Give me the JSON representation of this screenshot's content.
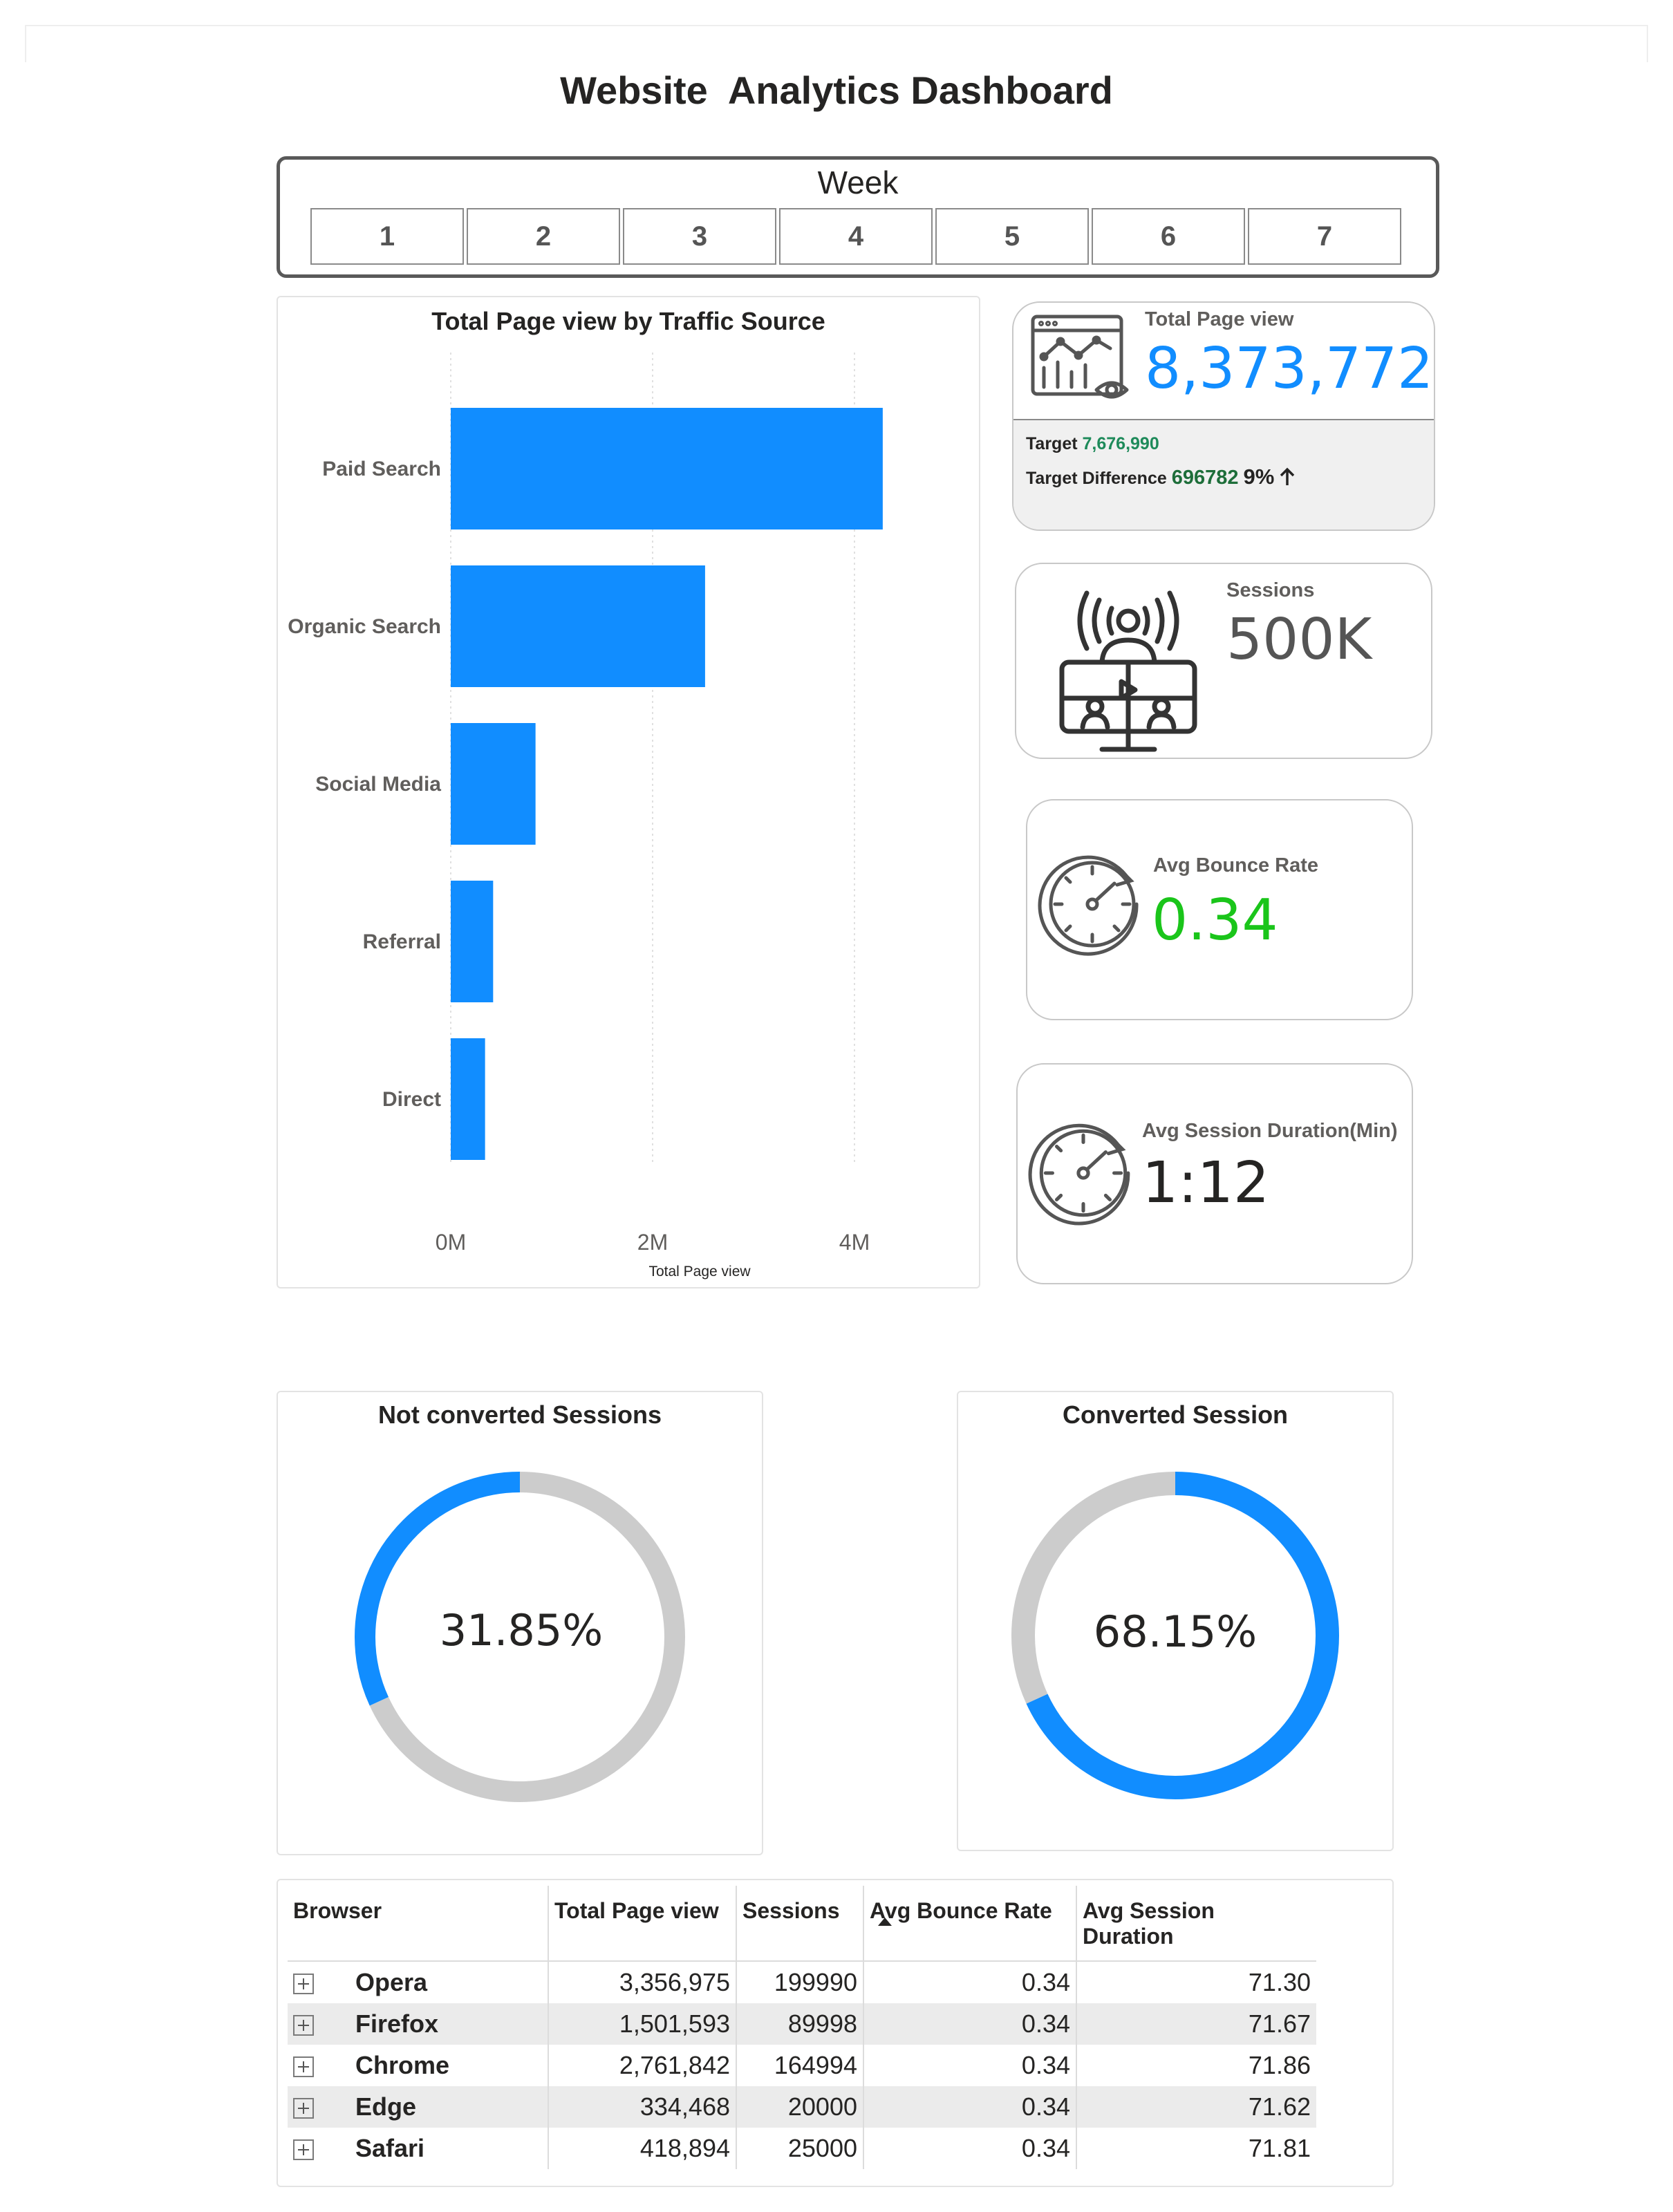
{
  "title": "Website  Analytics Dashboard",
  "week_slicer": {
    "title": "Week",
    "options": [
      "1",
      "2",
      "3",
      "4",
      "5",
      "6",
      "7"
    ]
  },
  "bar_chart": {
    "title": "Total Page view by Traffic Source",
    "xlabel": "Total Page view"
  },
  "chart_data": [
    {
      "type": "bar",
      "orientation": "horizontal",
      "title": "Total Page view by Traffic Source",
      "xlabel": "Total Page view",
      "ylabel": "",
      "categories": [
        "Paid Search",
        "Organic Search",
        "Social Media",
        "Referral",
        "Direct"
      ],
      "values": [
        4280000,
        2520000,
        840000,
        420000,
        340000
      ],
      "xlim": [
        0,
        5000000
      ],
      "xticks": [
        {
          "value": 0,
          "label": "0M"
        },
        {
          "value": 2000000,
          "label": "2M"
        },
        {
          "value": 4000000,
          "label": "4M"
        }
      ],
      "grid": true,
      "color": "#118dff"
    },
    {
      "type": "pie",
      "variant": "donut",
      "title": "Not converted Sessions",
      "values": [
        31.85,
        68.15
      ],
      "center_label": "31.85%",
      "colors": [
        "#118dff",
        "#cccccc"
      ]
    },
    {
      "type": "pie",
      "variant": "donut",
      "title": "Converted Session",
      "values": [
        68.15,
        31.85
      ],
      "center_label": "68.15%",
      "colors": [
        "#118dff",
        "#cccccc"
      ]
    }
  ],
  "kpi_page_view": {
    "label": "Total Page view",
    "value": "8,373,772",
    "target_label": "Target",
    "target_value": "7,676,990",
    "diff_label": "Target Difference",
    "diff_value": "696782",
    "diff_pct": "9%",
    "icon": "analytics-monitor-icon",
    "value_color": "#118dff",
    "target_color": "#1e8a5a"
  },
  "kpi_sessions": {
    "label": "Sessions",
    "value": "500K",
    "icon": "video-conference-icon"
  },
  "kpi_bounce": {
    "label": "Avg Bounce Rate",
    "value": "0.34",
    "icon": "stopwatch-icon",
    "value_color": "#1ac51a"
  },
  "kpi_duration": {
    "label": "Avg Session Duration(Min)",
    "value": "1:12",
    "icon": "stopwatch-icon"
  },
  "donut_not_converted": {
    "title": "Not converted Sessions",
    "label": "31.85%"
  },
  "donut_converted": {
    "title": "Converted Session",
    "label": "68.15%"
  },
  "table": {
    "headers": [
      "Browser",
      "Total Page view",
      "Sessions",
      "Avg Bounce Rate",
      "Avg Session Duration"
    ],
    "rows": [
      {
        "browser": "Opera",
        "page_view": "3,356,975",
        "sessions": "199990",
        "bounce": "0.34",
        "duration": "71.30"
      },
      {
        "browser": "Firefox",
        "page_view": "1,501,593",
        "sessions": "89998",
        "bounce": "0.34",
        "duration": "71.67"
      },
      {
        "browser": "Chrome",
        "page_view": "2,761,842",
        "sessions": "164994",
        "bounce": "0.34",
        "duration": "71.86"
      },
      {
        "browser": "Edge",
        "page_view": "334,468",
        "sessions": "20000",
        "bounce": "0.34",
        "duration": "71.62"
      },
      {
        "browser": "Safari",
        "page_view": "418,894",
        "sessions": "25000",
        "bounce": "0.34",
        "duration": "71.81"
      }
    ]
  }
}
